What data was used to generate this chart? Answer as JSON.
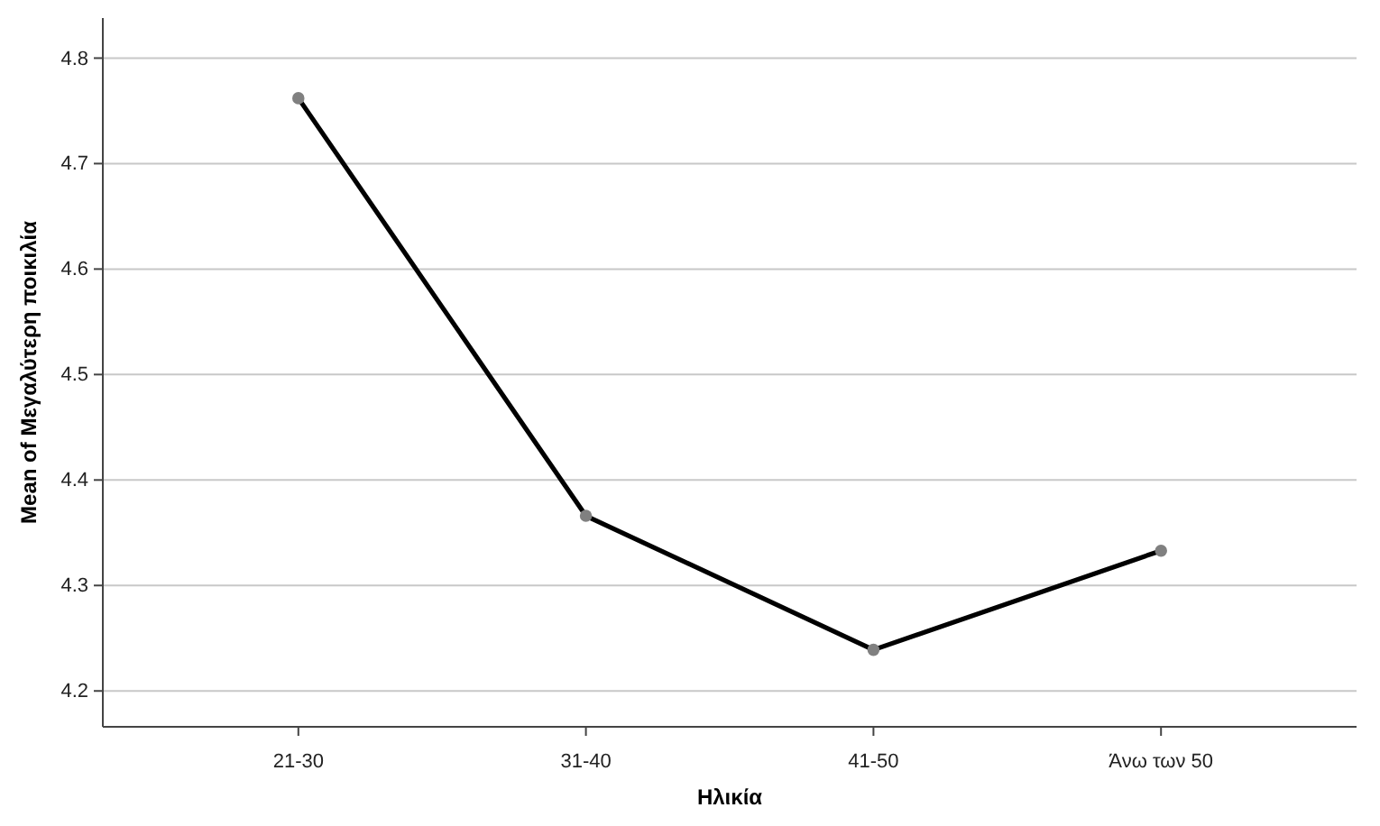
{
  "chart_data": {
    "type": "line",
    "xlabel": "Ηλικία",
    "ylabel": "Mean of Μεγαλύτερη ποικιλία",
    "categories": [
      "21-30",
      "31-40",
      "41-50",
      "Άνω των 50"
    ],
    "series": [
      {
        "color": "#000000",
        "values": [
          4.762,
          4.366,
          4.239,
          4.333
        ]
      }
    ],
    "ylim": [
      4.166,
      4.838
    ],
    "yticks": [
      4.2,
      4.3,
      4.4,
      4.5,
      4.6,
      4.7,
      4.8
    ],
    "grid": "y",
    "marker": "circle",
    "line_style": "solid"
  }
}
